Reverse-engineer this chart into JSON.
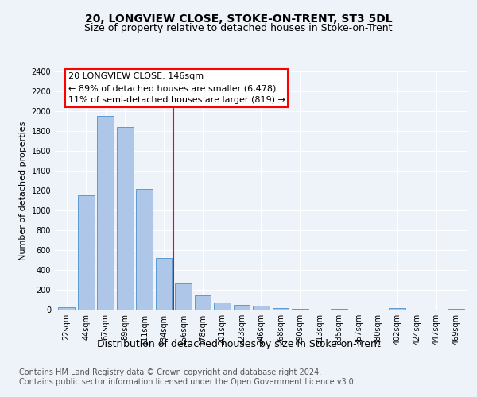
{
  "title": "20, LONGVIEW CLOSE, STOKE-ON-TRENT, ST3 5DL",
  "subtitle": "Size of property relative to detached houses in Stoke-on-Trent",
  "xlabel": "Distribution of detached houses by size in Stoke-on-Trent",
  "ylabel": "Number of detached properties",
  "categories": [
    "22sqm",
    "44sqm",
    "67sqm",
    "89sqm",
    "111sqm",
    "134sqm",
    "156sqm",
    "178sqm",
    "201sqm",
    "223sqm",
    "246sqm",
    "268sqm",
    "290sqm",
    "313sqm",
    "335sqm",
    "357sqm",
    "380sqm",
    "402sqm",
    "424sqm",
    "447sqm",
    "469sqm"
  ],
  "values": [
    28,
    1155,
    1950,
    1840,
    1220,
    520,
    265,
    145,
    75,
    48,
    42,
    18,
    12,
    0,
    5,
    0,
    0,
    15,
    0,
    0,
    8
  ],
  "bar_color": "#aec6e8",
  "bar_edge_color": "#5b9bd5",
  "reference_label": "20 LONGVIEW CLOSE: 146sqm",
  "annotation_line1": "← 89% of detached houses are smaller (6,478)",
  "annotation_line2": "11% of semi-detached houses are larger (819) →",
  "ylim": [
    0,
    2400
  ],
  "yticks": [
    0,
    200,
    400,
    600,
    800,
    1000,
    1200,
    1400,
    1600,
    1800,
    2000,
    2200,
    2400
  ],
  "footer_line1": "Contains HM Land Registry data © Crown copyright and database right 2024.",
  "footer_line2": "Contains public sector information licensed under the Open Government Licence v3.0.",
  "background_color": "#eef2f9",
  "plot_bg_color": "#eef2f9",
  "grid_color": "#ffffff",
  "title_fontsize": 10,
  "subtitle_fontsize": 9,
  "xlabel_fontsize": 9,
  "ylabel_fontsize": 8,
  "tick_fontsize": 7,
  "annot_fontsize": 8,
  "footer_fontsize": 7
}
